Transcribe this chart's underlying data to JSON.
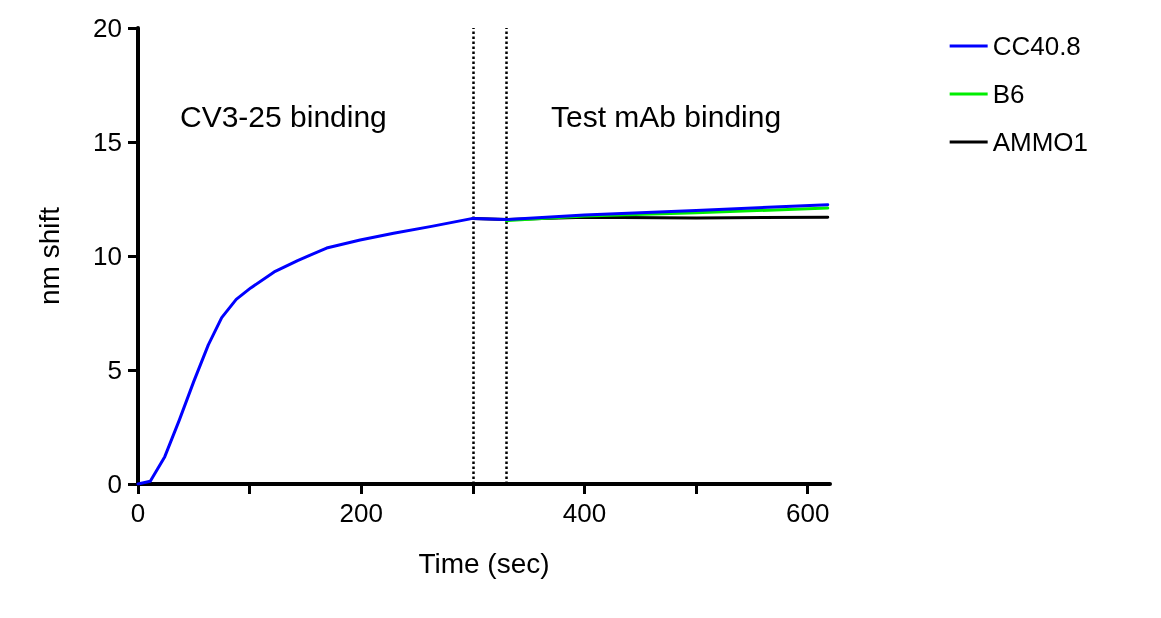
{
  "chart_data": {
    "type": "line",
    "xlabel": "Time (sec)",
    "ylabel": "nm shift",
    "xlim": [
      0,
      620
    ],
    "ylim": [
      0,
      20
    ],
    "xticks": [
      0,
      {
        "value": 100,
        "label": null
      },
      200,
      {
        "value": 300,
        "label": null
      },
      400,
      {
        "value": 500,
        "label": null
      },
      600
    ],
    "yticks": [
      0,
      5,
      10,
      15,
      20
    ],
    "grid": false,
    "legend": "top right",
    "marker": "none",
    "line_style": "solid",
    "annotations": [
      "CV3-25 binding",
      "Test mAb binding"
    ],
    "ref_lines": [
      {
        "axis": "x",
        "value": 300,
        "label": null,
        "color": "#000000",
        "line_style": "dotted"
      },
      {
        "axis": "x",
        "value": 330,
        "label": null,
        "color": "#000000",
        "line_style": "dotted"
      }
    ],
    "series": [
      {
        "name": "CC40.8",
        "color": "#0000ff",
        "x": [
          0,
          11,
          24,
          37,
          50,
          63,
          75,
          88,
          101,
          122,
          143,
          169,
          199,
          229,
          263,
          300,
          330,
          400,
          500,
          618
        ],
        "values": [
          0,
          0.12,
          1.2,
          2.8,
          4.5,
          6.1,
          7.3,
          8.1,
          8.6,
          9.3,
          9.8,
          10.35,
          10.7,
          11.0,
          11.3,
          11.65,
          11.6,
          11.8,
          12.0,
          12.25
        ]
      },
      {
        "name": "B6",
        "color": "#00ee00",
        "x": [
          330,
          400,
          500,
          618
        ],
        "values": [
          11.55,
          11.75,
          11.9,
          12.1
        ]
      },
      {
        "name": "AMMO1",
        "color": "#000000",
        "x": [
          300,
          330,
          400,
          500,
          618
        ],
        "values": [
          11.65,
          11.6,
          11.7,
          11.67,
          11.7
        ]
      }
    ]
  }
}
